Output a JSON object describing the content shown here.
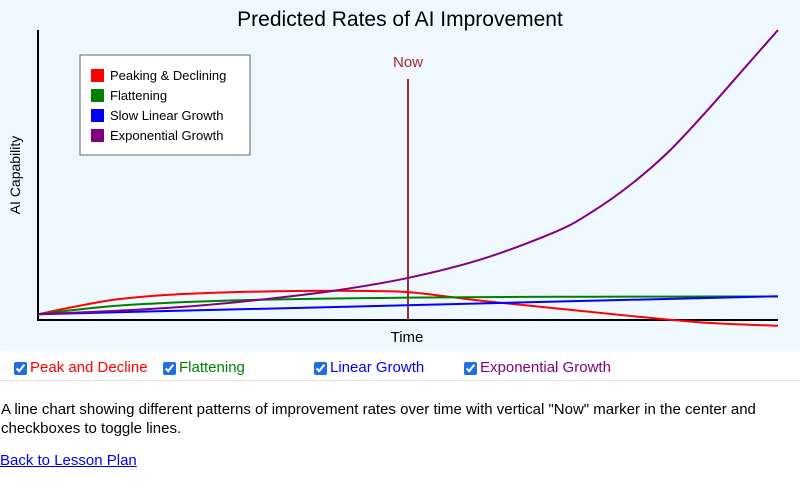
{
  "chart_data": {
    "type": "line",
    "title": "Predicted Rates of AI Improvement",
    "xlabel": "Time",
    "ylabel": "AI Capability",
    "xlim": [
      0,
      100
    ],
    "ylim": [
      0,
      100
    ],
    "now_marker": {
      "x": 50,
      "label": "Now",
      "color": "#a52a2a"
    },
    "series": [
      {
        "key": "peak",
        "name": "Peaking & Declining",
        "color": "#ff0000",
        "x": [
          0,
          5,
          10,
          15,
          20,
          25,
          30,
          35,
          40,
          45,
          50,
          55,
          60,
          70,
          80,
          90,
          100
        ],
        "y": [
          2,
          4.6,
          6.9,
          8.2,
          9.0,
          9.5,
          9.8,
          10.0,
          10.1,
          10.0,
          9.6,
          8.2,
          6.6,
          4.0,
          1.4,
          -0.9,
          -2.0
        ]
      },
      {
        "key": "flat",
        "name": "Flattening",
        "color": "#008000",
        "x": [
          0,
          5,
          10,
          15,
          20,
          30,
          40,
          50,
          60,
          70,
          80,
          90,
          100
        ],
        "y": [
          2,
          3.5,
          4.8,
          5.6,
          6.2,
          7.0,
          7.4,
          7.7,
          7.9,
          8.0,
          8.05,
          8.1,
          8.1
        ]
      },
      {
        "key": "linear",
        "name": "Slow Linear Growth",
        "color": "#0000ff",
        "x": [
          0,
          100
        ],
        "y": [
          2,
          8.2
        ]
      },
      {
        "key": "expo",
        "name": "Exponential Growth",
        "color": "#800080",
        "x": [
          0,
          10,
          20,
          30,
          40,
          50,
          60,
          70,
          75,
          80,
          85,
          90,
          95,
          100
        ],
        "y": [
          2,
          3.1,
          4.6,
          7.0,
          10.1,
          14.5,
          21.0,
          30.5,
          37.5,
          46.5,
          57.5,
          71.0,
          85.5,
          100
        ]
      }
    ]
  },
  "checkboxes": {
    "peak": "Peak and Decline",
    "flat": "Flattening",
    "linear": "Linear Growth",
    "expo": "Exponential Growth"
  },
  "description": "A line chart showing different patterns of improvement rates over time with vertical \"Now\" marker in the center and checkboxes to toggle lines.",
  "back_link": "Back to Lesson Plan"
}
